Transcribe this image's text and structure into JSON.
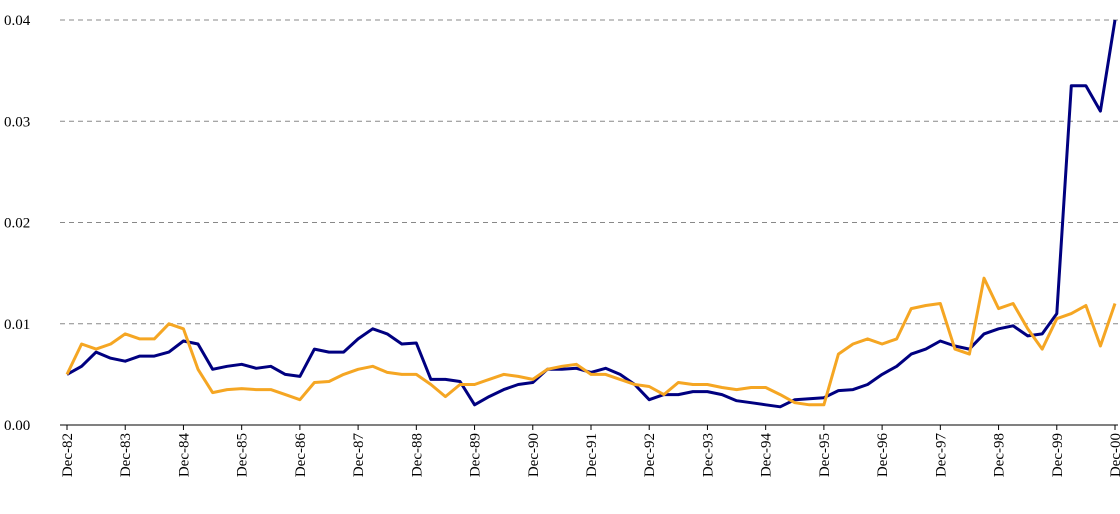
{
  "chart_data": {
    "type": "line",
    "categories": [
      "Dec-82",
      null,
      null,
      null,
      "Dec-83",
      null,
      null,
      null,
      "Dec-84",
      null,
      null,
      null,
      "Dec-85",
      null,
      null,
      null,
      "Dec-86",
      null,
      null,
      null,
      "Dec-87",
      null,
      null,
      null,
      "Dec-88",
      null,
      null,
      null,
      "Dec-89",
      null,
      null,
      null,
      "Dec-90",
      null,
      null,
      null,
      "Dec-91",
      null,
      null,
      null,
      "Dec-92",
      null,
      null,
      null,
      "Dec-93",
      null,
      null,
      null,
      "Dec-94",
      null,
      null,
      null,
      "Dec-95",
      null,
      null,
      null,
      "Dec-96",
      null,
      null,
      null,
      "Dec-97",
      null,
      null,
      null,
      "Dec-98",
      null,
      null,
      null,
      "Dec-99",
      null,
      null,
      null,
      "Dec-00"
    ],
    "series": [
      {
        "color": "#000080",
        "values": [
          0.005,
          0.0058,
          0.0072,
          0.0066,
          0.0063,
          0.0068,
          0.0068,
          0.0072,
          0.0083,
          0.008,
          0.0055,
          0.0058,
          0.006,
          0.0056,
          0.0058,
          0.005,
          0.0048,
          0.0075,
          0.0072,
          0.0072,
          0.0085,
          0.0095,
          0.009,
          0.008,
          0.0081,
          0.0045,
          0.0045,
          0.0043,
          0.002,
          0.0028,
          0.0035,
          0.004,
          0.0042,
          0.0055,
          0.0055,
          0.0056,
          0.0052,
          0.0056,
          0.005,
          0.004,
          0.0025,
          0.003,
          0.003,
          0.0033,
          0.0033,
          0.003,
          0.0024,
          0.0022,
          0.002,
          0.0018,
          0.0025,
          0.0026,
          0.0027,
          0.0034,
          0.0035,
          0.004,
          0.005,
          0.0058,
          0.007,
          0.0075,
          0.0083,
          0.0078,
          0.0075,
          0.009,
          0.0095,
          0.0098,
          0.0088,
          0.009,
          0.011,
          0.0335,
          0.0335,
          0.031,
          0.04
        ]
      },
      {
        "color": "#f5a623",
        "values": [
          0.005,
          0.008,
          0.0075,
          0.008,
          0.009,
          0.0085,
          0.0085,
          0.01,
          0.0095,
          0.0055,
          0.0032,
          0.0035,
          0.0036,
          0.0035,
          0.0035,
          0.003,
          0.0025,
          0.0042,
          0.0043,
          0.005,
          0.0055,
          0.0058,
          0.0052,
          0.005,
          0.005,
          0.004,
          0.0028,
          0.004,
          0.004,
          0.0045,
          0.005,
          0.0048,
          0.0045,
          0.0055,
          0.0058,
          0.006,
          0.005,
          0.005,
          0.0045,
          0.004,
          0.0038,
          0.003,
          0.0042,
          0.004,
          0.004,
          0.0037,
          0.0035,
          0.0037,
          0.0037,
          0.003,
          0.0022,
          0.002,
          0.002,
          0.007,
          0.008,
          0.0085,
          0.008,
          0.0085,
          0.0115,
          0.0118,
          0.012,
          0.0075,
          0.007,
          0.0145,
          0.0115,
          0.012,
          0.0095,
          0.0075,
          0.0105,
          0.011,
          0.0118,
          0.0078,
          0.012
        ]
      }
    ],
    "ylim": [
      0,
      0.04
    ],
    "yticks": [
      {
        "value": 0,
        "label": "0.00"
      },
      0.01,
      0.02,
      0.03,
      0.04
    ],
    "grid": true
  }
}
